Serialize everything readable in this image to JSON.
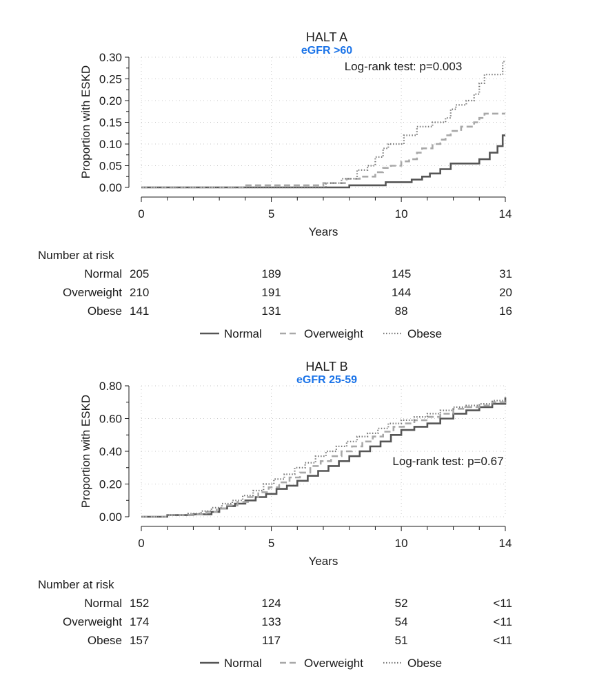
{
  "chart_data": [
    {
      "type": "line",
      "step": true,
      "title": "HALT A",
      "subtitle": "eGFR >60",
      "annotation": "Log-rank test: p=0.003",
      "xlabel": "Years",
      "ylabel": "Proportion with ESKD",
      "xlim": [
        0,
        14
      ],
      "ylim": [
        0,
        0.3
      ],
      "xticks": [
        0,
        5,
        10,
        14
      ],
      "yticks": [
        "0.00",
        "0.05",
        "0.10",
        "0.15",
        "0.20",
        "0.25",
        "0.30"
      ],
      "grid": "dotted",
      "series": [
        {
          "name": "Normal",
          "color": "#555555",
          "dash": "solid",
          "x": [
            0,
            8.0,
            9.4,
            10.4,
            10.8,
            11.1,
            11.5,
            11.9,
            12.5,
            13.0,
            13.4,
            13.7,
            13.9,
            14.0
          ],
          "y": [
            0,
            0.005,
            0.012,
            0.018,
            0.025,
            0.032,
            0.042,
            0.055,
            0.055,
            0.065,
            0.08,
            0.095,
            0.12,
            0.12
          ]
        },
        {
          "name": "Overweight",
          "color": "#a8a8a8",
          "dash": "dashed",
          "x": [
            0,
            4.0,
            7.0,
            7.9,
            8.4,
            9.0,
            9.3,
            9.6,
            10.0,
            10.3,
            10.6,
            10.8,
            11.2,
            11.5,
            11.7,
            11.9,
            12.3,
            12.8,
            13.0,
            13.2,
            14.0
          ],
          "y": [
            0,
            0.005,
            0.01,
            0.02,
            0.025,
            0.035,
            0.045,
            0.05,
            0.06,
            0.065,
            0.08,
            0.09,
            0.1,
            0.11,
            0.12,
            0.13,
            0.14,
            0.15,
            0.16,
            0.17,
            0.17
          ]
        },
        {
          "name": "Obese",
          "color": "#777777",
          "dash": "dotted",
          "x": [
            0,
            7.1,
            7.7,
            8.3,
            8.7,
            9.0,
            9.3,
            9.5,
            10.1,
            10.6,
            11.2,
            11.7,
            11.9,
            12.1,
            12.5,
            12.8,
            13.0,
            13.2,
            13.5,
            13.9,
            14.0
          ],
          "y": [
            0,
            0.01,
            0.02,
            0.04,
            0.05,
            0.07,
            0.09,
            0.1,
            0.12,
            0.14,
            0.15,
            0.16,
            0.18,
            0.19,
            0.2,
            0.215,
            0.24,
            0.26,
            0.26,
            0.29,
            0.29
          ]
        }
      ],
      "risk_table": {
        "header": "Number at risk",
        "times": [
          0,
          5,
          10,
          14
        ],
        "rows": [
          {
            "label": "Normal",
            "values": [
              "205",
              "189",
              "145",
              "31"
            ]
          },
          {
            "label": "Overweight",
            "values": [
              "210",
              "191",
              "144",
              "20"
            ]
          },
          {
            "label": "Obese",
            "values": [
              "141",
              "131",
              "88",
              "16"
            ]
          }
        ]
      },
      "legend": [
        "Normal",
        "Overweight",
        "Obese"
      ],
      "legend_position": "bottom"
    },
    {
      "type": "line",
      "step": true,
      "title": "HALT B",
      "subtitle": "eGFR 25-59",
      "annotation": "Log-rank test: p=0.67",
      "xlabel": "Years",
      "ylabel": "Proportion with ESKD",
      "xlim": [
        0,
        14
      ],
      "ylim": [
        0,
        0.8
      ],
      "xticks": [
        0,
        5,
        10,
        14
      ],
      "yticks": [
        "0.00",
        "0.20",
        "0.40",
        "0.60",
        "0.80"
      ],
      "grid": "dotted",
      "series": [
        {
          "name": "Normal",
          "color": "#555555",
          "dash": "solid",
          "x": [
            0,
            1.0,
            2.0,
            2.7,
            3.0,
            3.3,
            3.6,
            4.0,
            4.4,
            4.8,
            5.2,
            5.6,
            6.0,
            6.4,
            6.8,
            7.2,
            7.6,
            8.0,
            8.4,
            8.8,
            9.2,
            9.6,
            10.0,
            10.5,
            11.0,
            11.5,
            12.0,
            12.5,
            13.0,
            13.5,
            14.0
          ],
          "y": [
            0,
            0.01,
            0.015,
            0.03,
            0.05,
            0.065,
            0.08,
            0.1,
            0.12,
            0.14,
            0.17,
            0.19,
            0.22,
            0.25,
            0.28,
            0.31,
            0.34,
            0.37,
            0.4,
            0.43,
            0.46,
            0.5,
            0.53,
            0.55,
            0.57,
            0.6,
            0.63,
            0.65,
            0.67,
            0.69,
            0.73
          ]
        },
        {
          "name": "Overweight",
          "color": "#a8a8a8",
          "dash": "dashed",
          "x": [
            0,
            1.0,
            2.0,
            2.5,
            2.9,
            3.3,
            3.7,
            4.1,
            4.5,
            4.9,
            5.3,
            5.7,
            6.1,
            6.5,
            6.9,
            7.3,
            7.7,
            8.1,
            8.5,
            8.9,
            9.3,
            9.7,
            10.1,
            10.5,
            11.0,
            11.5,
            12.0,
            12.5,
            13.0,
            13.5,
            14.0
          ],
          "y": [
            0,
            0.01,
            0.015,
            0.03,
            0.05,
            0.07,
            0.09,
            0.12,
            0.15,
            0.18,
            0.21,
            0.24,
            0.27,
            0.31,
            0.34,
            0.37,
            0.4,
            0.43,
            0.46,
            0.49,
            0.52,
            0.55,
            0.57,
            0.59,
            0.61,
            0.63,
            0.66,
            0.67,
            0.68,
            0.7,
            0.72
          ]
        },
        {
          "name": "Obese",
          "color": "#777777",
          "dash": "dotted",
          "x": [
            0,
            1.0,
            1.8,
            2.3,
            2.7,
            3.1,
            3.5,
            3.9,
            4.3,
            4.7,
            5.1,
            5.5,
            5.9,
            6.3,
            6.7,
            7.1,
            7.5,
            7.9,
            8.3,
            8.7,
            9.1,
            9.5,
            10.0,
            10.5,
            11.0,
            11.5,
            12.0,
            12.5,
            13.0,
            13.5,
            14.0
          ],
          "y": [
            0,
            0.01,
            0.02,
            0.035,
            0.055,
            0.08,
            0.1,
            0.13,
            0.16,
            0.2,
            0.23,
            0.26,
            0.3,
            0.33,
            0.37,
            0.4,
            0.43,
            0.46,
            0.49,
            0.51,
            0.54,
            0.57,
            0.59,
            0.61,
            0.63,
            0.65,
            0.67,
            0.68,
            0.69,
            0.71,
            0.72
          ]
        }
      ],
      "risk_table": {
        "header": "Number at risk",
        "times": [
          0,
          5,
          10,
          14
        ],
        "rows": [
          {
            "label": "Normal",
            "values": [
              "152",
              "124",
              "52",
              "<11"
            ]
          },
          {
            "label": "Overweight",
            "values": [
              "174",
              "133",
              "54",
              "<11"
            ]
          },
          {
            "label": "Obese",
            "values": [
              "157",
              "117",
              "51",
              "<11"
            ]
          }
        ]
      },
      "legend": [
        "Normal",
        "Overweight",
        "Obese"
      ],
      "legend_position": "bottom"
    }
  ],
  "styles": {
    "subtitle_color": "#1a73e8",
    "axis_color": "#1a1a1a",
    "grid_color": "#c8c8c8"
  }
}
